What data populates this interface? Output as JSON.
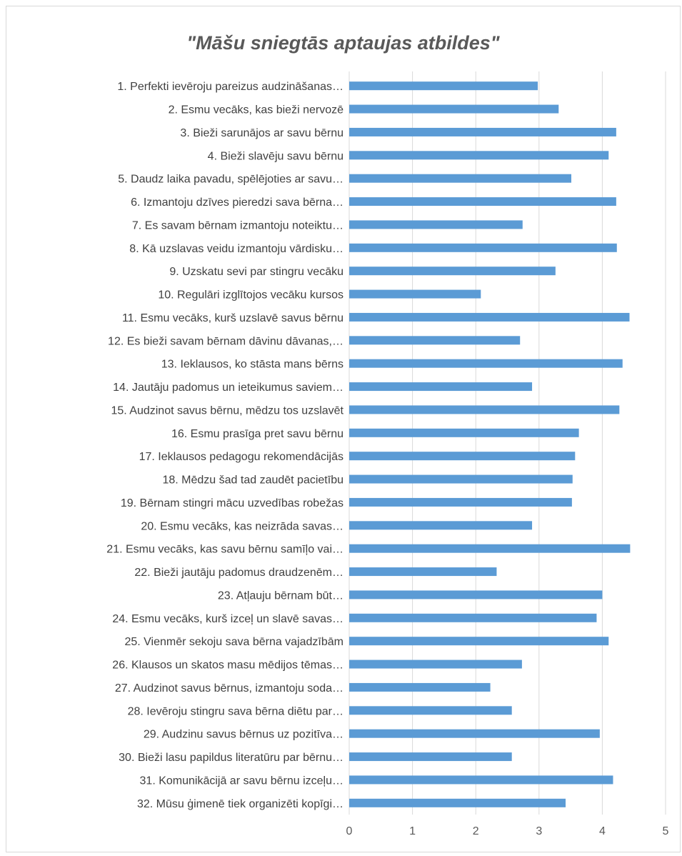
{
  "chart_data": {
    "type": "bar",
    "orientation": "horizontal",
    "title": "\"Māšu sniegtās aptaujas atbildes\"",
    "xlabel": "",
    "ylabel": "",
    "xlim": [
      0,
      5
    ],
    "xticks": [
      0,
      1,
      2,
      3,
      4,
      5
    ],
    "grid": true,
    "legend": "none",
    "bar_color": "#5B9BD5",
    "categories": [
      "1. Perfekti ievēroju pareizus audzināšanas…",
      "2. Esmu vecāks, kas bieži nervozē",
      "3. Bieži sarunājos ar savu bērnu",
      "4. Bieži slavēju savu bērnu",
      "5. Daudz laika pavadu, spēlējoties ar savu…",
      "6. Izmantoju dzīves pieredzi sava bērna…",
      "7. Es savam bērnam izmantoju noteiktu…",
      "8. Kā uzslavas veidu izmantoju vārdisku…",
      "9. Uzskatu sevi par stingru vecāku",
      "10. Regulāri izglītojos vecāku kursos",
      "11. Esmu vecāks, kurš uzslavē savus bērnu",
      "12. Es bieži savam bērnam dāvinu dāvanas,…",
      "13. Ieklausos, ko stāsta mans bērns",
      "14. Jautāju padomus un ieteikumus saviem…",
      "15. Audzinot savus bērnu, mēdzu tos uzslavēt",
      "16. Esmu prasīga pret savu bērnu",
      "17. Ieklausos pedagogu rekomendācijās",
      "18. Mēdzu šad tad zaudēt pacietību",
      "19. Bērnam stingri māc​u uzvedības robežas",
      "20. Esmu vecāks, kas neizrāda savas…",
      "21. Esmu vecāks, kas savu bērnu samīļo vai…",
      "22. Bieži jautāju padomus draudzenēm…",
      "23. Atļauju bērnam būt…",
      "24. Esmu vecāks, kurš izceļ un slavē savas…",
      "25. Vienmēr sekoju sava bērna vajadzībām",
      "26. Klausos un skatos masu mēdijos tēmas…",
      "27. Audzinot savus bērnus, izmantoju soda…",
      "28. Ievēroju stingru sava bērna diētu par…",
      "29. Audzinu savus bērnus uz pozitīva…",
      "30. Bieži lasu papildus literatūru par bērnu…",
      "31. Komunikācijā ar savu bērnu izceļu…",
      "32. Mūsu ģimenē tiek organizēti kopīgi…"
    ],
    "values": [
      2.98,
      3.31,
      4.22,
      4.1,
      3.51,
      4.22,
      2.74,
      4.23,
      3.26,
      2.08,
      4.43,
      2.7,
      4.32,
      2.89,
      4.27,
      3.63,
      3.57,
      3.53,
      3.52,
      2.89,
      4.44,
      2.33,
      4.0,
      3.91,
      4.1,
      2.73,
      2.23,
      2.57,
      3.96,
      2.57,
      4.17,
      3.42
    ]
  }
}
